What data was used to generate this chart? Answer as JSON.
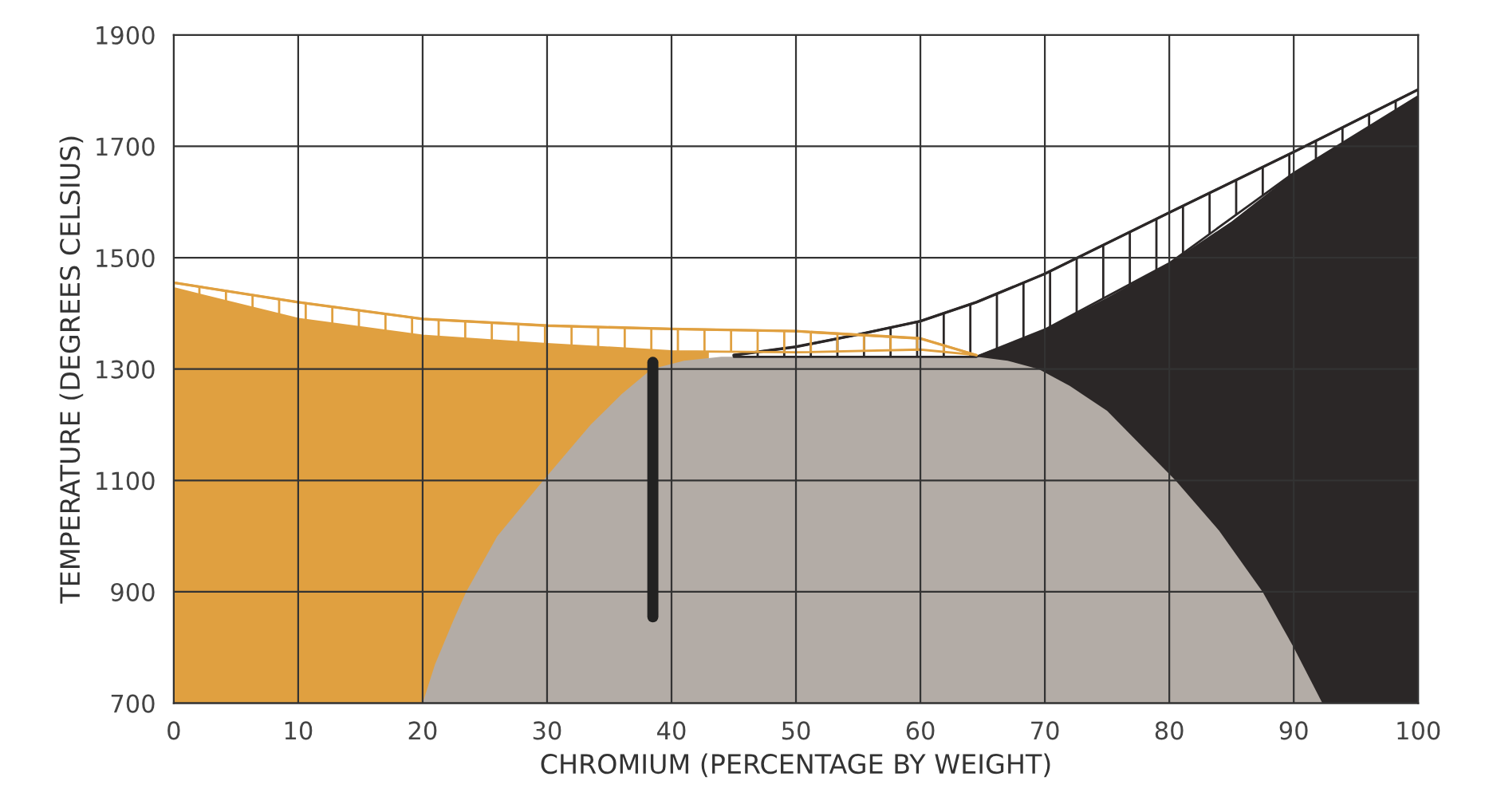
{
  "chart_data": {
    "type": "area",
    "xlabel": "CHROMIUM (PERCENTAGE BY WEIGHT)",
    "ylabel": "TEMPERATURE (DEGREES CELSIUS)",
    "xlim": [
      0,
      100
    ],
    "ylim": [
      700,
      1900
    ],
    "xticks": [
      0,
      10,
      20,
      30,
      40,
      50,
      60,
      70,
      80,
      90,
      100
    ],
    "yticks": [
      700,
      900,
      1100,
      1300,
      1500,
      1700,
      1900
    ],
    "grid": true,
    "series": [
      {
        "color": "#e0a040",
        "x": [
          0,
          10,
          20,
          30,
          40,
          43
        ],
        "values": [
          1445,
          1390,
          1360,
          1345,
          1332,
          1331
        ]
      },
      {
        "color": "#2b2727",
        "x": [
          64.5,
          70,
          75,
          80,
          85,
          90,
          95,
          100
        ],
        "values": [
          1324,
          1371,
          1428,
          1490,
          1565,
          1652,
          1720,
          1790
        ]
      },
      {
        "color": "#b3aca6",
        "x": [
          20,
          21,
          22.5,
          23.5,
          26,
          29.7,
          33.5,
          36,
          38.4,
          41,
          44,
          46,
          50,
          55,
          60,
          64.5,
          67,
          69.5,
          72,
          75,
          80.5,
          84,
          87.5,
          90,
          92.3
        ],
        "values": [
          700,
          770,
          850,
          900,
          1000,
          1100,
          1200,
          1255,
          1300,
          1315,
          1322,
          1322,
          1322,
          1322,
          1322,
          1322,
          1315,
          1300,
          1270,
          1225,
          1100,
          1010,
          900,
          800,
          700
        ]
      },
      {
        "type": "line",
        "color": "#2b2727",
        "x": [
          45,
          50,
          55,
          60,
          64.5,
          70,
          80,
          90,
          100
        ],
        "lower": [
          1322,
          1322,
          1322,
          1322,
          1322,
          1371,
          1490,
          1652,
          1790
        ],
        "upper": [
          1325,
          1340,
          1362,
          1386,
          1420,
          1471,
          1581,
          1690,
          1802
        ],
        "values": [
          1325,
          1340,
          1362,
          1386,
          1420,
          1471,
          1581,
          1690,
          1802
        ]
      },
      {
        "type": "line",
        "color": "#e0a040",
        "x": [
          0,
          10,
          20,
          30,
          40,
          50,
          60,
          64.5
        ],
        "lower": [
          1445,
          1390,
          1360,
          1345,
          1332,
          1330,
          1335,
          1325
        ],
        "upper": [
          1455,
          1420,
          1390,
          1378,
          1372,
          1368,
          1355,
          1325
        ],
        "values": [
          1455,
          1420,
          1390,
          1378,
          1372,
          1368,
          1355,
          1325
        ]
      },
      {
        "type": "line",
        "color": "#222222",
        "x": [
          38.5,
          38.5
        ],
        "values": [
          1312,
          855
        ]
      }
    ]
  }
}
